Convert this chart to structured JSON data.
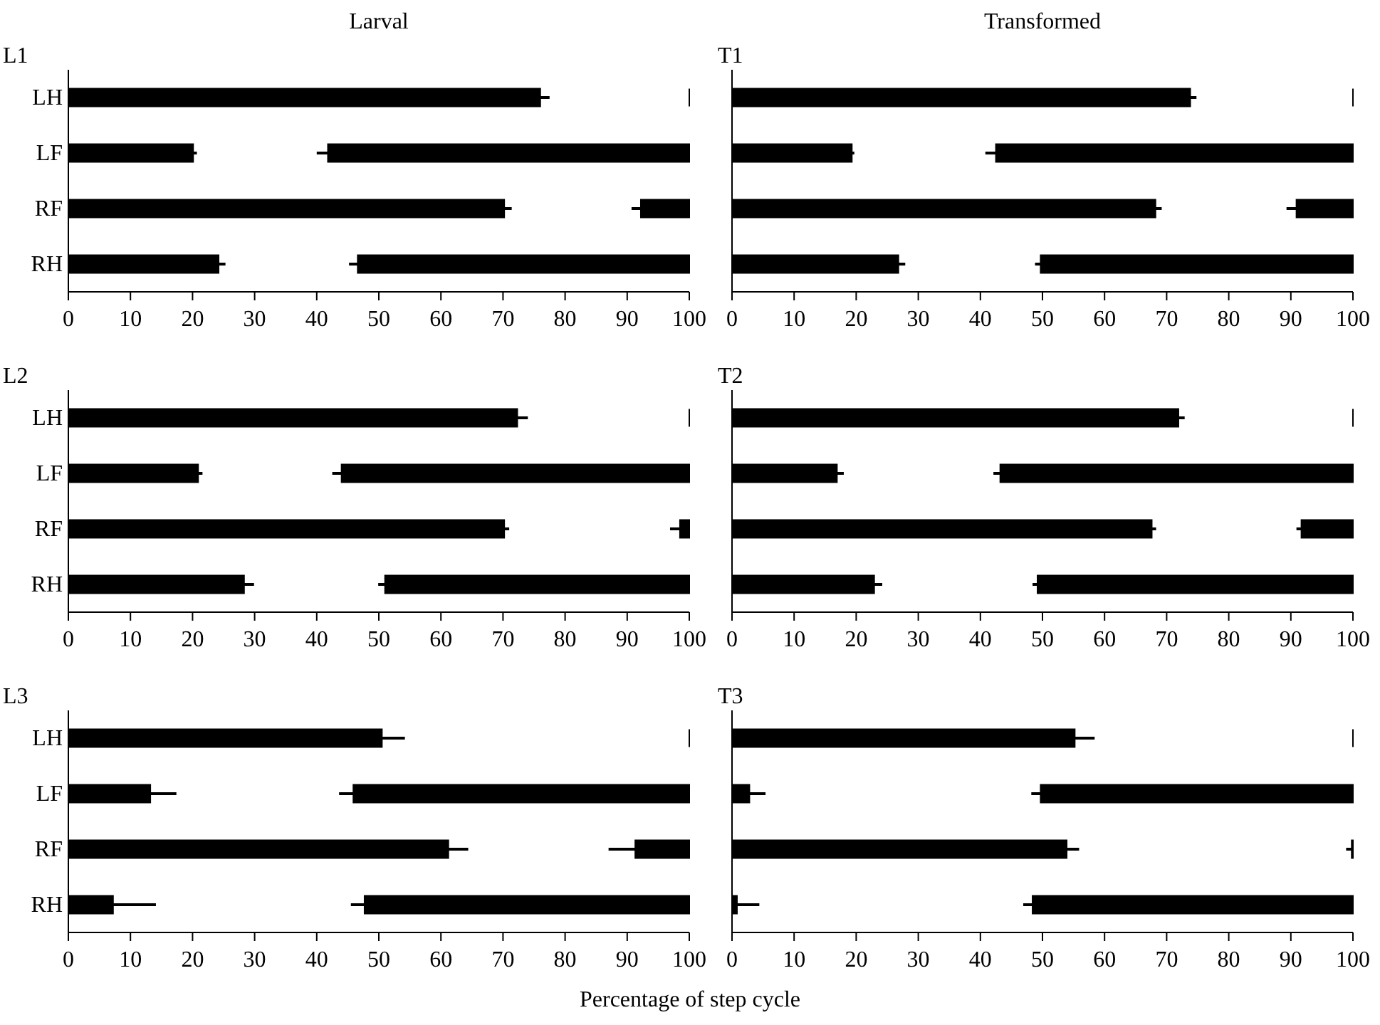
{
  "chart_data": [
    {
      "type": "bar",
      "orientation": "horizontal",
      "title": "Larval",
      "subtitle": "L1",
      "categories": [
        "LH",
        "LF",
        "RF",
        "RH"
      ],
      "xlim": [
        0,
        100
      ],
      "xticks": [
        0,
        10,
        20,
        30,
        40,
        50,
        60,
        70,
        80,
        90,
        100
      ],
      "series": [
        {
          "color": "#000000",
          "base": [
            0,
            0,
            0,
            0
          ],
          "values": [
            76.0,
            20.1,
            70.2,
            24.2
          ],
          "errors": [
            [
              76.0,
              77.5
            ],
            [
              20.1,
              20.7
            ],
            [
              70.2,
              71.4
            ],
            [
              24.2,
              25.3
            ]
          ]
        },
        {
          "color": "#000000",
          "base": [
            100,
            100,
            100,
            100
          ],
          "values": [
            0,
            -58.2,
            -7.8,
            -53.4
          ],
          "errors": [
            null,
            [
              40.0,
              41.8
            ],
            [
              90.7,
              92.2
            ],
            [
              45.2,
              46.6
            ]
          ]
        }
      ]
    },
    {
      "type": "bar",
      "orientation": "horizontal",
      "title": "Transformed",
      "subtitle": "T1",
      "categories": [
        null,
        null,
        null,
        null
      ],
      "tick_labels": "x",
      "xlim": [
        0,
        100
      ],
      "xticks": [
        0,
        10,
        20,
        30,
        40,
        50,
        60,
        70,
        80,
        90,
        100
      ],
      "series": [
        {
          "color": "#000000",
          "base": [
            0,
            0,
            0,
            0
          ],
          "values": [
            73.8,
            19.3,
            68.2,
            26.8
          ],
          "errors": [
            [
              73.8,
              74.8
            ],
            [
              19.3,
              19.7
            ],
            [
              68.2,
              69.2
            ],
            [
              26.8,
              27.9
            ]
          ]
        },
        {
          "color": "#000000",
          "base": [
            100,
            100,
            100,
            100
          ],
          "values": [
            0,
            -57.5,
            -9.1,
            -50.3
          ],
          "errors": [
            null,
            [
              40.8,
              42.5
            ],
            [
              89.3,
              90.9
            ],
            [
              48.8,
              49.7
            ]
          ]
        }
      ]
    },
    {
      "type": "bar",
      "orientation": "horizontal",
      "title": "L2",
      "categories": [
        "LH",
        "LF",
        "RF",
        "RH"
      ],
      "xlim": [
        0,
        100
      ],
      "xticks": [
        0,
        10,
        20,
        30,
        40,
        50,
        60,
        70,
        80,
        90,
        100
      ],
      "series": [
        {
          "color": "#000000",
          "base": [
            0,
            0,
            0,
            0
          ],
          "values": [
            72.3,
            20.9,
            70.2,
            28.3
          ],
          "errors": [
            [
              72.3,
              74.0
            ],
            [
              20.9,
              21.6
            ],
            [
              70.2,
              71.0
            ],
            [
              28.3,
              29.9
            ]
          ]
        },
        {
          "color": "#000000",
          "base": [
            100,
            100,
            100,
            100
          ],
          "values": [
            0,
            -56.0,
            -1.5,
            -49.0
          ],
          "errors": [
            null,
            [
              42.5,
              44.0
            ],
            [
              96.9,
              98.5
            ],
            [
              49.9,
              51.0
            ]
          ]
        }
      ]
    },
    {
      "type": "bar",
      "orientation": "horizontal",
      "title": "T2",
      "categories": [
        null,
        null,
        null,
        null
      ],
      "tick_labels": "x",
      "xlim": [
        0,
        100
      ],
      "xticks": [
        0,
        10,
        20,
        30,
        40,
        50,
        60,
        70,
        80,
        90,
        100
      ],
      "series": [
        {
          "color": "#000000",
          "base": [
            0,
            0,
            0,
            0
          ],
          "values": [
            71.9,
            16.9,
            67.6,
            22.9
          ],
          "errors": [
            [
              71.9,
              72.9
            ],
            [
              16.9,
              18.0
            ],
            [
              67.6,
              68.3
            ],
            [
              22.9,
              24.2
            ]
          ]
        },
        {
          "color": "#000000",
          "base": [
            100,
            100,
            100,
            100
          ],
          "values": [
            0,
            -56.8,
            -8.3,
            -50.8
          ],
          "errors": [
            null,
            [
              42.1,
              43.2
            ],
            [
              90.9,
              91.7
            ],
            [
              48.4,
              49.2
            ]
          ]
        }
      ]
    },
    {
      "type": "bar",
      "orientation": "horizontal",
      "title": "L3",
      "xlabel": "Percentage of step cycle",
      "categories": [
        "LH",
        "LF",
        "RF",
        "RH"
      ],
      "xlim": [
        0,
        100
      ],
      "xticks": [
        0,
        10,
        20,
        30,
        40,
        50,
        60,
        70,
        80,
        90,
        100
      ],
      "series": [
        {
          "color": "#000000",
          "base": [
            0,
            0,
            0,
            0
          ],
          "values": [
            50.5,
            13.2,
            61.2,
            7.2
          ],
          "errors": [
            [
              50.5,
              54.2
            ],
            [
              13.2,
              17.4
            ],
            [
              61.2,
              64.4
            ],
            [
              7.2,
              14.1
            ]
          ]
        },
        {
          "color": "#000000",
          "base": [
            100,
            100,
            100,
            100
          ],
          "values": [
            0,
            -54.1,
            -8.7,
            -52.3
          ],
          "errors": [
            null,
            [
              43.6,
              45.9
            ],
            [
              87.0,
              91.3
            ],
            [
              45.5,
              47.7
            ]
          ]
        }
      ]
    },
    {
      "type": "bar",
      "orientation": "horizontal",
      "title": "T3",
      "categories": [
        null,
        null,
        null,
        null
      ],
      "tick_labels": "x",
      "xlim": [
        0,
        100
      ],
      "xticks": [
        0,
        10,
        20,
        30,
        40,
        50,
        60,
        70,
        80,
        90,
        100
      ],
      "series": [
        {
          "color": "#000000",
          "base": [
            0,
            0,
            0,
            0
          ],
          "values": [
            55.2,
            2.8,
            53.9,
            0.8
          ],
          "errors": [
            [
              55.2,
              58.4
            ],
            [
              2.8,
              5.4
            ],
            [
              53.9,
              55.9
            ],
            [
              0.8,
              4.4
            ]
          ]
        },
        {
          "color": "#000000",
          "base": [
            100,
            100,
            100,
            100
          ],
          "values": [
            0,
            -50.3,
            -0.2,
            -51.6
          ],
          "errors": [
            null,
            [
              48.2,
              49.7
            ],
            [
              98.9,
              99.8
            ],
            [
              46.9,
              48.4
            ]
          ]
        }
      ]
    }
  ]
}
